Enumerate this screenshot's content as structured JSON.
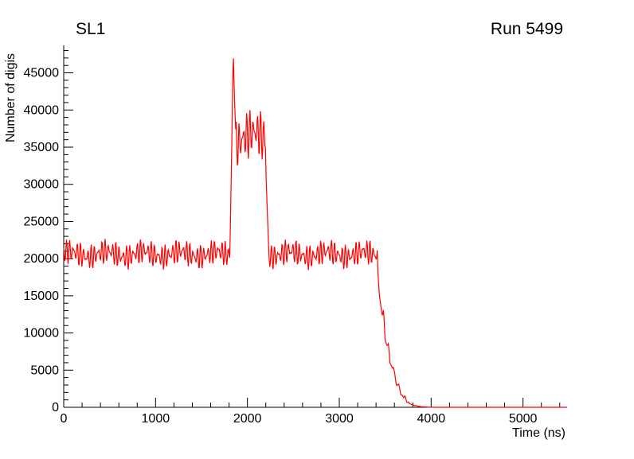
{
  "header": {
    "left": "SL1",
    "right": "Run 5499"
  },
  "chart_data": {
    "type": "line",
    "title": "",
    "xlabel": "Time (ns)",
    "ylabel": "Number of digis",
    "xlim": [
      0,
      5480
    ],
    "ylim": [
      0,
      48700
    ],
    "grid": false,
    "legend": "none",
    "x_major_ticks": [
      0,
      1000,
      2000,
      3000,
      4000,
      5000
    ],
    "x_minor_step": 200,
    "y_major_ticks": [
      0,
      5000,
      10000,
      15000,
      20000,
      25000,
      30000,
      35000,
      40000,
      45000
    ],
    "y_minor_step": 1000,
    "series": [
      {
        "name": "number-of-digis-vs-time",
        "color": "#ff0000",
        "line_width": 1.2,
        "bin_ns": 6,
        "segments": [
          {
            "kind": "noise",
            "t0": 0,
            "t1": 1810,
            "mean": 20600,
            "amp": 2150
          },
          {
            "kind": "ramp",
            "t0": 1810,
            "t1": 1846,
            "y0": 21500,
            "y1": 47800,
            "amp": 400
          },
          {
            "kind": "ramp",
            "t0": 1846,
            "t1": 1872,
            "y0": 47800,
            "y1": 37000,
            "amp": 900
          },
          {
            "kind": "noise",
            "t0": 1872,
            "t1": 2196,
            "mean": 36300,
            "amp": 4200
          },
          {
            "kind": "ramp",
            "t0": 2196,
            "t1": 2232,
            "y0": 33500,
            "y1": 21200,
            "amp": 500
          },
          {
            "kind": "noise",
            "t0": 2232,
            "t1": 3415,
            "mean": 20600,
            "amp": 2150
          },
          {
            "kind": "anchors",
            "amp": 350,
            "points": [
              [
                3415,
                19000
              ],
              [
                3438,
                15200
              ],
              [
                3452,
                13400
              ],
              [
                3468,
                12700
              ],
              [
                3482,
                13100
              ],
              [
                3498,
                9400
              ],
              [
                3518,
                8300
              ],
              [
                3534,
                8500
              ],
              [
                3552,
                6200
              ],
              [
                3570,
                5200
              ],
              [
                3588,
                5600
              ],
              [
                3608,
                3900
              ],
              [
                3628,
                2800
              ],
              [
                3648,
                3050
              ],
              [
                3668,
                1800
              ],
              [
                3688,
                1300
              ],
              [
                3708,
                1550
              ],
              [
                3730,
                850
              ],
              [
                3758,
                560
              ],
              [
                3788,
                380
              ],
              [
                3828,
                230
              ],
              [
                3868,
                120
              ],
              [
                3918,
                55
              ],
              [
                3978,
                18
              ],
              [
                4040,
                0
              ]
            ]
          },
          {
            "kind": "flat",
            "t0": 4040,
            "t1": 5480,
            "y": 0
          }
        ]
      }
    ]
  }
}
